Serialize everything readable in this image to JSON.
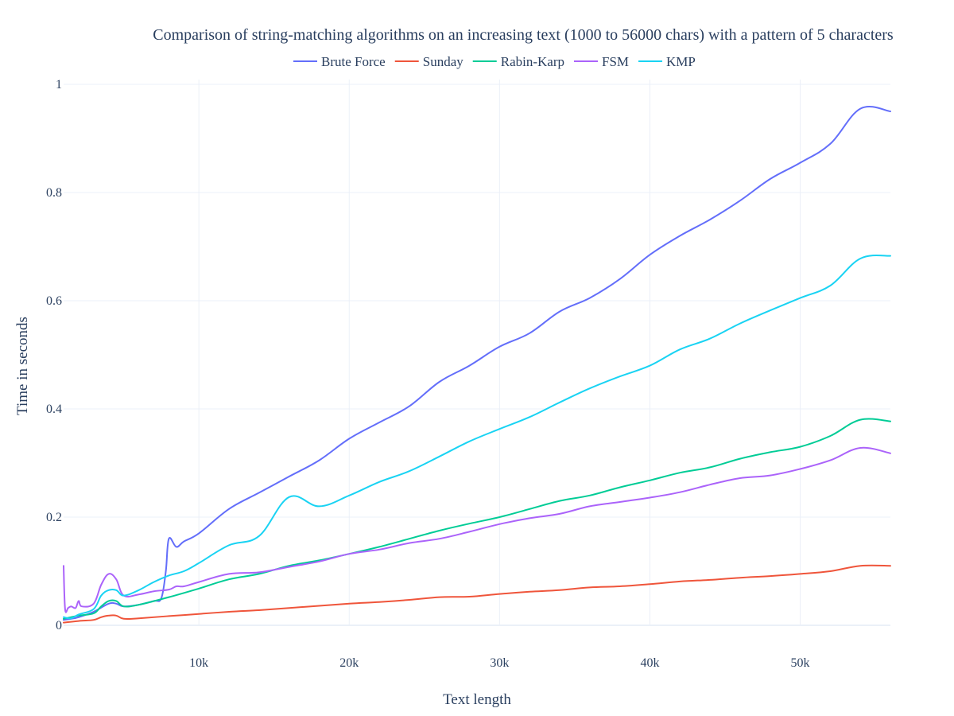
{
  "chart_data": {
    "type": "line",
    "title": "Comparison of string-matching algorithms on an increasing text (1000 to 56000 chars) with a pattern of 5 characters",
    "xlabel": "Text length",
    "ylabel": "Time in seconds",
    "xlim": [
      1000,
      56000
    ],
    "ylim": [
      0,
      1
    ],
    "grid": true,
    "legend": "top-center",
    "x_ticks": [
      {
        "value": 10000,
        "label": "10k"
      },
      {
        "value": 20000,
        "label": "20k"
      },
      {
        "value": 30000,
        "label": "30k"
      },
      {
        "value": 40000,
        "label": "40k"
      },
      {
        "value": 50000,
        "label": "50k"
      }
    ],
    "y_ticks": [
      {
        "value": 0,
        "label": "0"
      },
      {
        "value": 0.2,
        "label": "0.2"
      },
      {
        "value": 0.4,
        "label": "0.4"
      },
      {
        "value": 0.6,
        "label": "0.6"
      },
      {
        "value": 0.8,
        "label": "0.8"
      },
      {
        "value": 1,
        "label": "1"
      }
    ],
    "series": [
      {
        "name": "Brute Force",
        "color": "#636efa",
        "points": [
          [
            1000,
            0.01
          ],
          [
            1500,
            0.012
          ],
          [
            2000,
            0.015
          ],
          [
            3000,
            0.025
          ],
          [
            4000,
            0.04
          ],
          [
            4500,
            0.04
          ],
          [
            5000,
            0.035
          ],
          [
            6000,
            0.038
          ],
          [
            7000,
            0.045
          ],
          [
            7500,
            0.05
          ],
          [
            7800,
            0.1
          ],
          [
            8000,
            0.16
          ],
          [
            8500,
            0.145
          ],
          [
            9000,
            0.155
          ],
          [
            10000,
            0.17
          ],
          [
            12000,
            0.215
          ],
          [
            14000,
            0.245
          ],
          [
            16000,
            0.275
          ],
          [
            18000,
            0.305
          ],
          [
            20000,
            0.345
          ],
          [
            22000,
            0.375
          ],
          [
            24000,
            0.405
          ],
          [
            26000,
            0.45
          ],
          [
            28000,
            0.48
          ],
          [
            30000,
            0.515
          ],
          [
            32000,
            0.54
          ],
          [
            34000,
            0.58
          ],
          [
            36000,
            0.605
          ],
          [
            38000,
            0.64
          ],
          [
            40000,
            0.685
          ],
          [
            42000,
            0.72
          ],
          [
            44000,
            0.75
          ],
          [
            46000,
            0.785
          ],
          [
            48000,
            0.825
          ],
          [
            50000,
            0.855
          ],
          [
            52000,
            0.89
          ],
          [
            54000,
            0.955
          ],
          [
            56000,
            0.95
          ]
        ]
      },
      {
        "name": "Sunday",
        "color": "#ef553b",
        "points": [
          [
            1000,
            0.005
          ],
          [
            2000,
            0.008
          ],
          [
            3000,
            0.01
          ],
          [
            3500,
            0.015
          ],
          [
            4000,
            0.018
          ],
          [
            4500,
            0.018
          ],
          [
            5000,
            0.012
          ],
          [
            6000,
            0.013
          ],
          [
            8000,
            0.017
          ],
          [
            10000,
            0.021
          ],
          [
            12000,
            0.025
          ],
          [
            14000,
            0.028
          ],
          [
            16000,
            0.032
          ],
          [
            18000,
            0.036
          ],
          [
            20000,
            0.04
          ],
          [
            22000,
            0.043
          ],
          [
            24000,
            0.047
          ],
          [
            26000,
            0.052
          ],
          [
            28000,
            0.053
          ],
          [
            30000,
            0.058
          ],
          [
            32000,
            0.062
          ],
          [
            34000,
            0.065
          ],
          [
            36000,
            0.07
          ],
          [
            38000,
            0.072
          ],
          [
            40000,
            0.076
          ],
          [
            42000,
            0.081
          ],
          [
            44000,
            0.084
          ],
          [
            46000,
            0.088
          ],
          [
            48000,
            0.091
          ],
          [
            50000,
            0.095
          ],
          [
            52000,
            0.1
          ],
          [
            54000,
            0.11
          ],
          [
            56000,
            0.11
          ]
        ]
      },
      {
        "name": "Rabin-Karp",
        "color": "#00cc96",
        "points": [
          [
            1000,
            0.012
          ],
          [
            2000,
            0.018
          ],
          [
            3000,
            0.022
          ],
          [
            3500,
            0.035
          ],
          [
            4000,
            0.045
          ],
          [
            4500,
            0.045
          ],
          [
            5000,
            0.035
          ],
          [
            6000,
            0.038
          ],
          [
            8000,
            0.052
          ],
          [
            10000,
            0.068
          ],
          [
            12000,
            0.085
          ],
          [
            14000,
            0.095
          ],
          [
            16000,
            0.11
          ],
          [
            18000,
            0.12
          ],
          [
            20000,
            0.132
          ],
          [
            22000,
            0.145
          ],
          [
            24000,
            0.16
          ],
          [
            26000,
            0.175
          ],
          [
            28000,
            0.188
          ],
          [
            30000,
            0.2
          ],
          [
            32000,
            0.215
          ],
          [
            34000,
            0.23
          ],
          [
            36000,
            0.24
          ],
          [
            38000,
            0.255
          ],
          [
            40000,
            0.268
          ],
          [
            42000,
            0.282
          ],
          [
            44000,
            0.292
          ],
          [
            46000,
            0.308
          ],
          [
            48000,
            0.32
          ],
          [
            50000,
            0.33
          ],
          [
            52000,
            0.35
          ],
          [
            54000,
            0.38
          ],
          [
            56000,
            0.377
          ]
        ]
      },
      {
        "name": "FSM",
        "color": "#ab63fa",
        "points": [
          [
            1000,
            0.11
          ],
          [
            1100,
            0.03
          ],
          [
            1300,
            0.032
          ],
          [
            1500,
            0.035
          ],
          [
            1800,
            0.032
          ],
          [
            2000,
            0.045
          ],
          [
            2200,
            0.035
          ],
          [
            3000,
            0.04
          ],
          [
            3500,
            0.075
          ],
          [
            4000,
            0.095
          ],
          [
            4500,
            0.085
          ],
          [
            5000,
            0.055
          ],
          [
            6000,
            0.057
          ],
          [
            7000,
            0.063
          ],
          [
            8000,
            0.066
          ],
          [
            8500,
            0.072
          ],
          [
            9000,
            0.072
          ],
          [
            10000,
            0.08
          ],
          [
            12000,
            0.095
          ],
          [
            14000,
            0.098
          ],
          [
            16000,
            0.108
          ],
          [
            18000,
            0.118
          ],
          [
            20000,
            0.132
          ],
          [
            22000,
            0.14
          ],
          [
            24000,
            0.152
          ],
          [
            26000,
            0.16
          ],
          [
            28000,
            0.173
          ],
          [
            30000,
            0.187
          ],
          [
            32000,
            0.198
          ],
          [
            34000,
            0.206
          ],
          [
            36000,
            0.22
          ],
          [
            38000,
            0.228
          ],
          [
            40000,
            0.236
          ],
          [
            42000,
            0.246
          ],
          [
            44000,
            0.26
          ],
          [
            46000,
            0.272
          ],
          [
            48000,
            0.277
          ],
          [
            50000,
            0.289
          ],
          [
            52000,
            0.305
          ],
          [
            54000,
            0.328
          ],
          [
            56000,
            0.318
          ]
        ]
      },
      {
        "name": "KMP",
        "color": "#19d3f3",
        "points": [
          [
            1000,
            0.015
          ],
          [
            1500,
            0.013
          ],
          [
            2000,
            0.02
          ],
          [
            3000,
            0.03
          ],
          [
            3500,
            0.055
          ],
          [
            4000,
            0.065
          ],
          [
            4500,
            0.065
          ],
          [
            5000,
            0.055
          ],
          [
            6000,
            0.065
          ],
          [
            7000,
            0.08
          ],
          [
            8000,
            0.092
          ],
          [
            9000,
            0.1
          ],
          [
            10000,
            0.115
          ],
          [
            12000,
            0.148
          ],
          [
            14000,
            0.165
          ],
          [
            16000,
            0.237
          ],
          [
            18000,
            0.22
          ],
          [
            20000,
            0.24
          ],
          [
            22000,
            0.265
          ],
          [
            24000,
            0.285
          ],
          [
            26000,
            0.312
          ],
          [
            28000,
            0.34
          ],
          [
            30000,
            0.363
          ],
          [
            32000,
            0.385
          ],
          [
            34000,
            0.412
          ],
          [
            36000,
            0.438
          ],
          [
            38000,
            0.46
          ],
          [
            40000,
            0.48
          ],
          [
            42000,
            0.51
          ],
          [
            44000,
            0.53
          ],
          [
            46000,
            0.558
          ],
          [
            48000,
            0.582
          ],
          [
            50000,
            0.605
          ],
          [
            52000,
            0.628
          ],
          [
            54000,
            0.678
          ],
          [
            56000,
            0.683
          ]
        ]
      }
    ]
  }
}
